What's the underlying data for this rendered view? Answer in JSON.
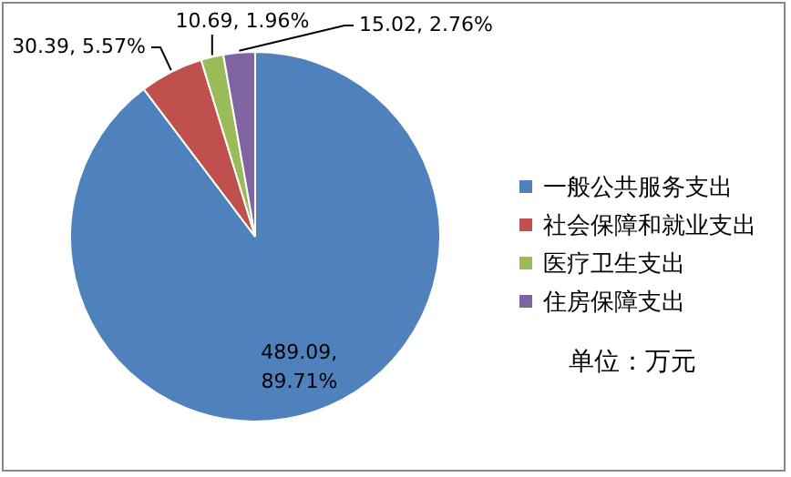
{
  "chart_data": {
    "type": "pie",
    "categories": [
      "一般公共服务支出",
      "社会保障和就业支出",
      "医疗卫生支出",
      "住房保障支出"
    ],
    "values": [
      489.09,
      30.39,
      10.69,
      15.02
    ],
    "colors": [
      "#4f81bd",
      "#c0504d",
      "#9bbb59",
      "#8064a2"
    ],
    "value_labels": [
      "489.09, 89.71%",
      "30.39, 5.57%",
      "10.69, 1.96%",
      "15.02, 2.76%"
    ],
    "legend": "right",
    "annotations": [
      "单位：万元"
    ]
  }
}
